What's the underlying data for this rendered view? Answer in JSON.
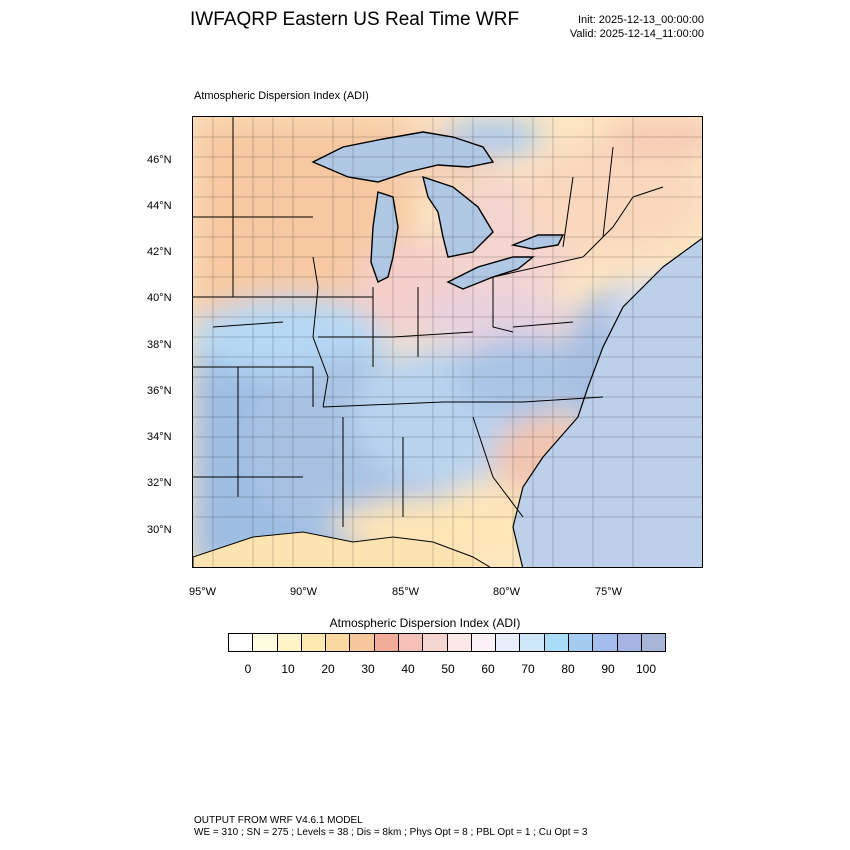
{
  "header": {
    "title": "IWFAQRP Eastern US Real Time WRF",
    "init": "Init: 2025-12-13_00:00:00",
    "valid": "Valid: 2025-12-14_11:00:00"
  },
  "panel": {
    "title": "Atmospheric Dispersion Index   (ADI)"
  },
  "map": {
    "lat_labels": [
      "46°N",
      "44°N",
      "42°N",
      "40°N",
      "38°N",
      "36°N",
      "34°N",
      "32°N",
      "30°N"
    ],
    "lon_labels": [
      "95°W",
      "90°W",
      "85°W",
      "80°W",
      "75°W"
    ]
  },
  "colorbar": {
    "title": "Atmospheric Dispersion Index  (ADI)",
    "colors": [
      "#ffffff",
      "#fffbe0",
      "#fff3c8",
      "#fde8b0",
      "#fad9a0",
      "#f6c79a",
      "#f2ad9a",
      "#f4c0b8",
      "#f7d6d2",
      "#fae9e6",
      "#fbf1f6",
      "#e8eefa",
      "#cde7f8",
      "#a9dcf6",
      "#a3ccf0",
      "#a3bdec",
      "#a6b4e4",
      "#a7b6d8"
    ],
    "labels": [
      "0",
      "10",
      "20",
      "30",
      "40",
      "50",
      "60",
      "70",
      "80",
      "90",
      "100"
    ]
  },
  "footer": {
    "line1": "OUTPUT FROM WRF V4.6.1 MODEL",
    "line2": "WE = 310 ; SN = 275 ; Levels = 38 ; Dis = 8km ; Phys Opt = 8 ; PBL Opt = 1 ; Cu Opt = 3"
  }
}
